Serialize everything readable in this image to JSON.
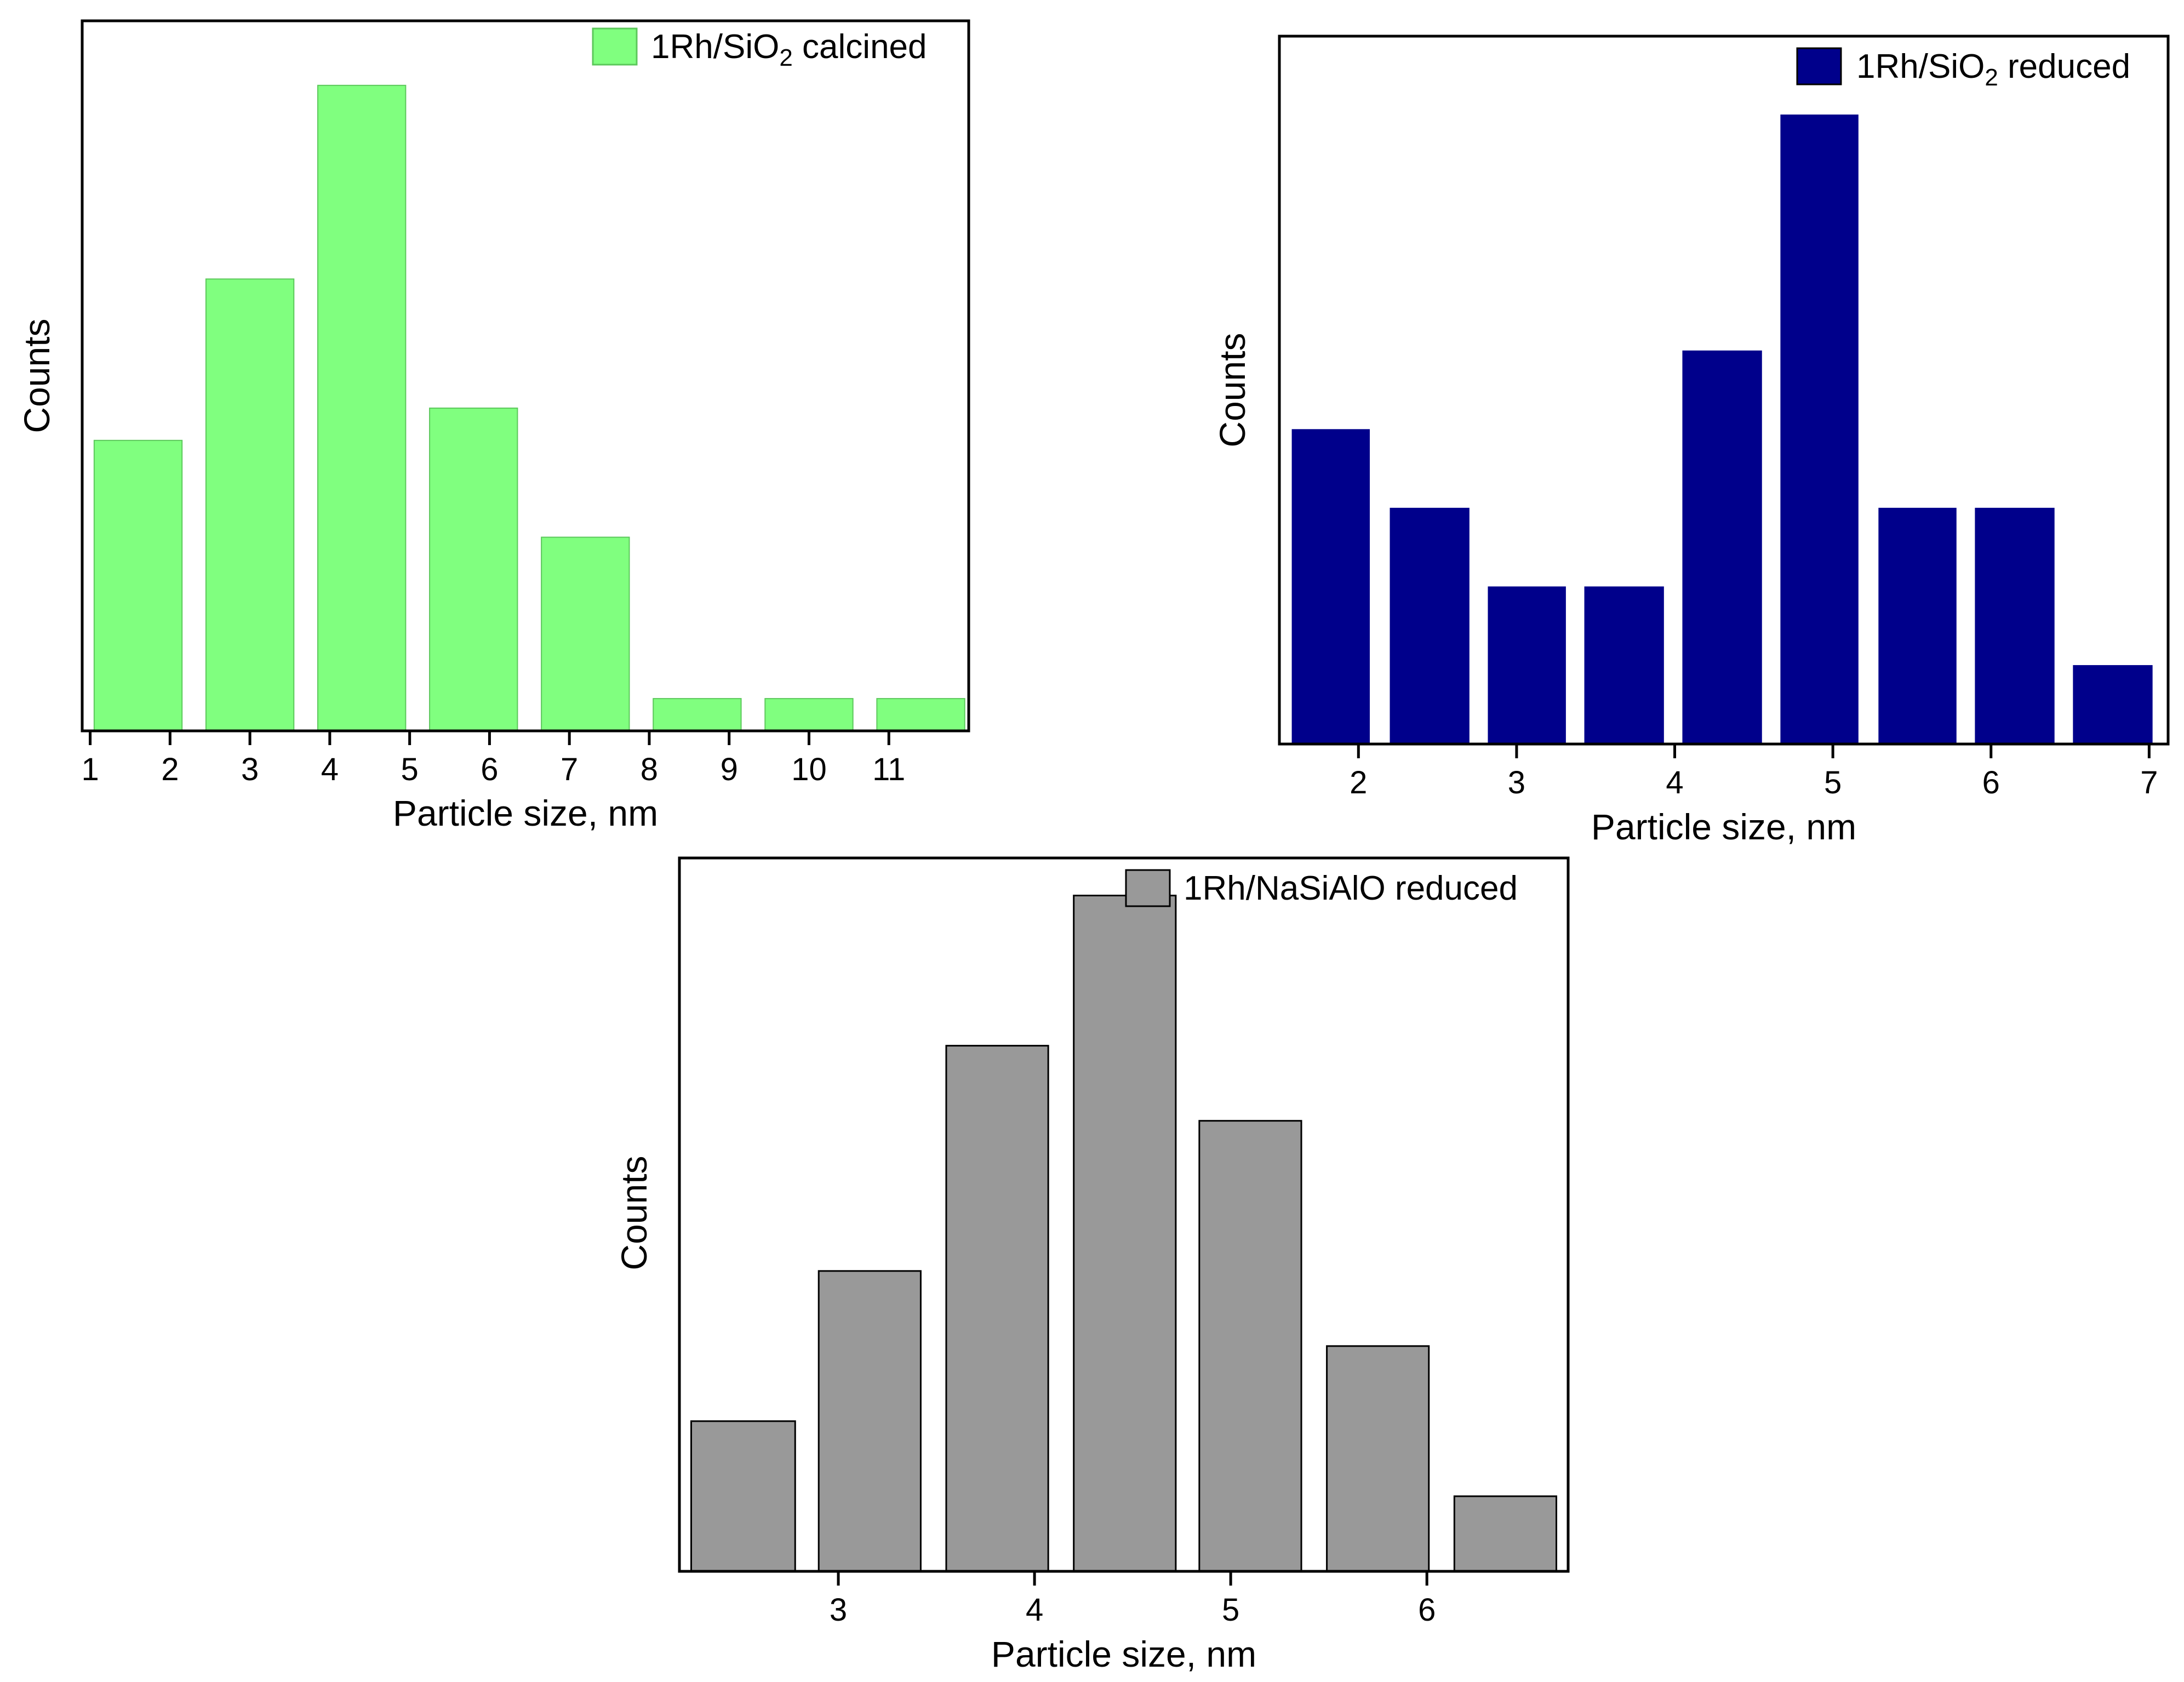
{
  "figure": {
    "panels": [
      {
        "id": "calcined",
        "legend_label": "1Rh/SiO",
        "legend_subscript": "2",
        "legend_suffix": " calcined",
        "bar_fill": "#80ff7f",
        "bar_stroke": "#5cc85b",
        "x_tick_labels": [
          "1",
          "2",
          "3",
          "4",
          "5",
          "6",
          "7",
          "8",
          "9",
          "10",
          "11"
        ],
        "xlabel": "Particle size, nm",
        "ylabel": "Counts"
      },
      {
        "id": "reduced_sio2",
        "legend_label": "1Rh/SiO",
        "legend_subscript": "2",
        "legend_suffix": " reduced",
        "bar_fill": "#00008b",
        "bar_stroke": "#00008b",
        "x_tick_labels": [
          "2",
          "3",
          "4",
          "5",
          "6",
          "7"
        ],
        "xlabel": "Particle size, nm",
        "ylabel": "Counts"
      },
      {
        "id": "reduced_nasialo",
        "legend_label": "1Rh/NaSiAlO reduced",
        "legend_subscript": "",
        "legend_suffix": "",
        "bar_fill": "#999999",
        "bar_stroke": "#000000",
        "x_tick_labels": [
          "3",
          "4",
          "5",
          "6"
        ],
        "xlabel": "Particle size, nm",
        "ylabel": "Counts"
      }
    ]
  },
  "chart_data": [
    {
      "type": "bar",
      "title": "",
      "series": [
        {
          "name": "1Rh/SiO2 calcined",
          "bins": [
            [
              1.05,
              2.15
            ],
            [
              2.45,
              3.55
            ],
            [
              3.85,
              4.95
            ],
            [
              5.25,
              6.35
            ],
            [
              6.65,
              7.75
            ],
            [
              8.05,
              9.15
            ],
            [
              9.45,
              10.55
            ],
            [
              10.85,
              11.95
            ]
          ],
          "values": [
            9,
            14,
            20,
            10,
            6,
            1,
            1,
            1
          ]
        }
      ],
      "xlabel": "Particle size, nm",
      "ylabel": "Counts",
      "xlim": [
        0.9,
        12.0
      ],
      "ylim": [
        0,
        22
      ],
      "xticks": [
        1,
        2,
        3,
        4,
        5,
        6,
        7,
        8,
        9,
        10,
        11
      ],
      "grid": false,
      "legend_position": "top-right"
    },
    {
      "type": "bar",
      "title": "",
      "series": [
        {
          "name": "1Rh/SiO2 reduced",
          "bins": [
            [
              1.58,
              2.07
            ],
            [
              2.2,
              2.7
            ],
            [
              2.82,
              3.31
            ],
            [
              3.43,
              3.93
            ],
            [
              4.05,
              4.55
            ],
            [
              4.67,
              5.16
            ],
            [
              5.29,
              5.78
            ],
            [
              5.9,
              6.4
            ],
            [
              6.52,
              7.02
            ]
          ],
          "values": [
            4,
            3,
            2,
            2,
            5,
            8,
            3,
            3,
            1
          ]
        }
      ],
      "xlabel": "Particle size, nm",
      "ylabel": "Counts",
      "xlim": [
        1.5,
        7.12
      ],
      "ylim": [
        0,
        9
      ],
      "xticks": [
        2,
        3,
        4,
        5,
        6,
        7
      ],
      "grid": false,
      "legend_position": "top-right"
    },
    {
      "type": "bar",
      "title": "",
      "series": [
        {
          "name": "1Rh/NaSiAlO reduced",
          "bins": [
            [
              2.25,
              2.78
            ],
            [
              2.9,
              3.42
            ],
            [
              3.55,
              4.07
            ],
            [
              4.2,
              4.72
            ],
            [
              4.84,
              5.36
            ],
            [
              5.49,
              6.01
            ],
            [
              6.14,
              6.66
            ]
          ],
          "values": [
            2,
            4,
            7,
            9,
            6,
            3,
            1
          ]
        }
      ],
      "xlabel": "Particle size, nm",
      "ylabel": "Counts",
      "xlim": [
        2.19,
        6.72
      ],
      "ylim": [
        0,
        9.5
      ],
      "xticks": [
        3,
        4,
        5,
        6
      ],
      "grid": false,
      "legend_position": "top-right"
    }
  ]
}
